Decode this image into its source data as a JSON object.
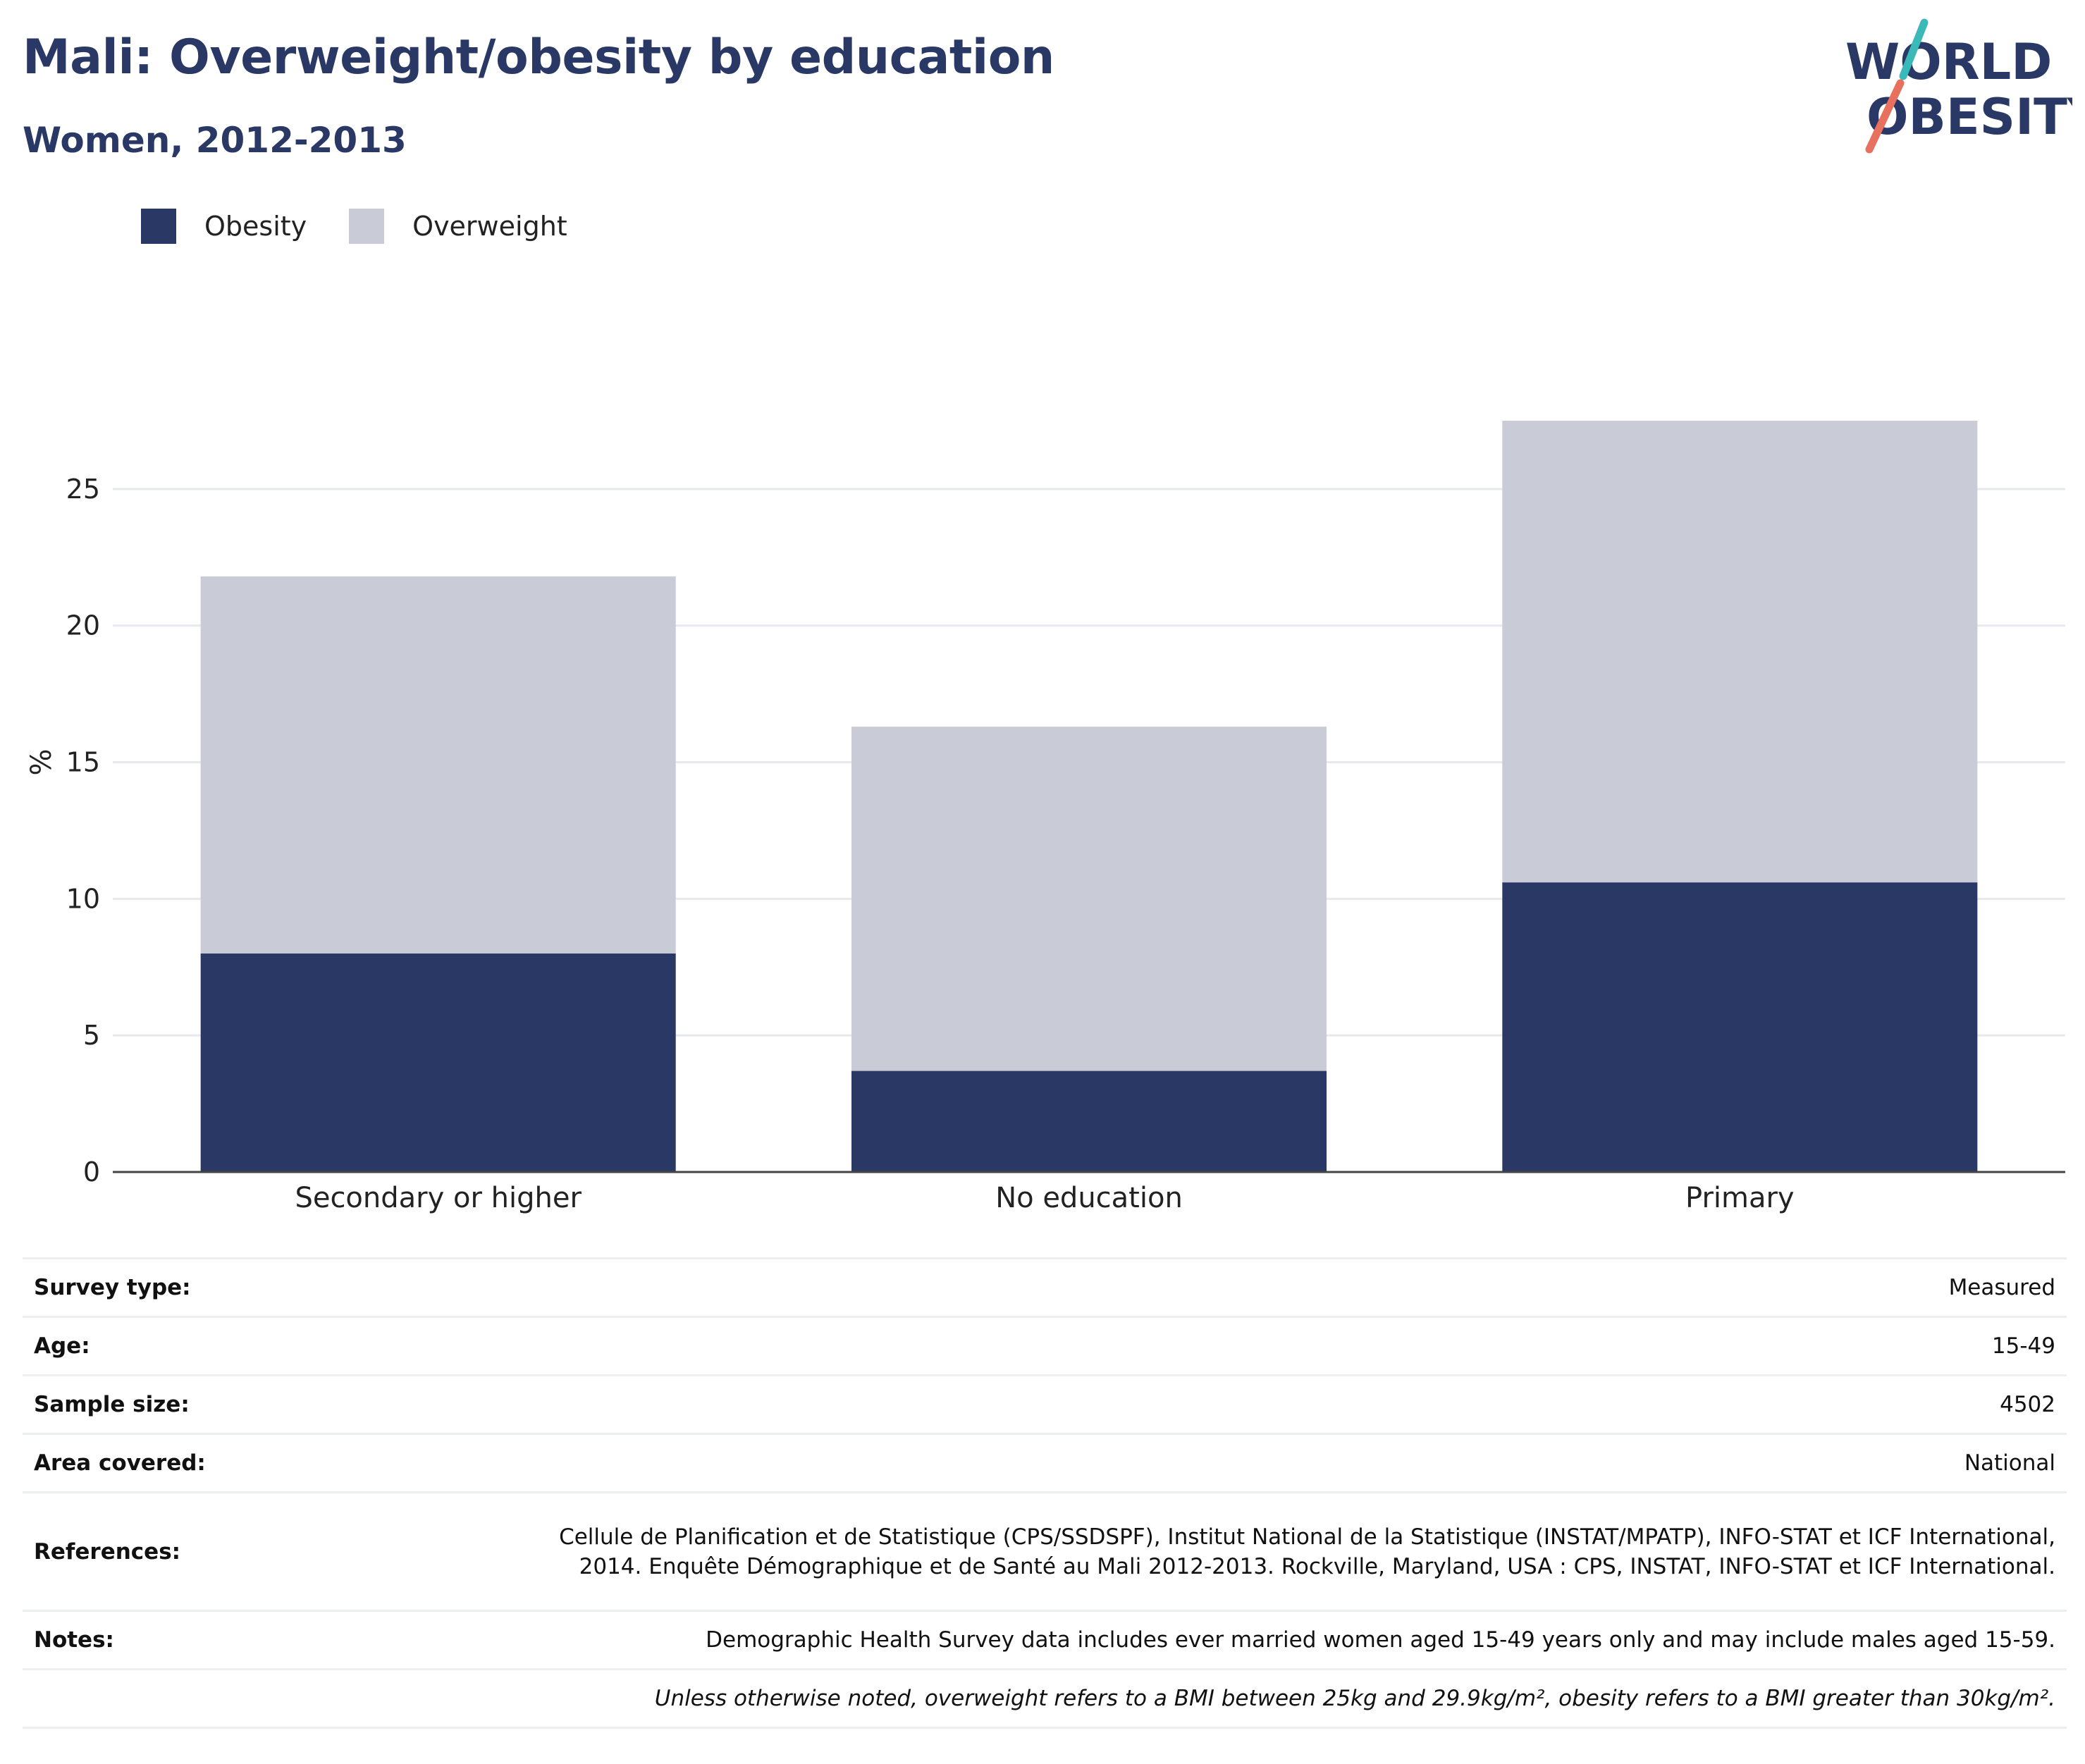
{
  "header": {
    "title": "Mali: Overweight/obesity by education",
    "subtitle": "Women, 2012-2013"
  },
  "logo": {
    "line1": "WORLD",
    "line2": "OBESITY",
    "colors": {
      "text": "#2a3866",
      "teal": "#3bb8b8",
      "coral": "#e8705e"
    }
  },
  "colors": {
    "obesity": "#2a3866",
    "overweight": "#c9cbd6",
    "grid": "#e8e9ee",
    "axis": "#444444",
    "heading": "#2a3866"
  },
  "legend": {
    "items": [
      {
        "label": "Obesity",
        "color": "#2a3866"
      },
      {
        "label": "Overweight",
        "color": "#c9cbd6"
      }
    ]
  },
  "chart_data": {
    "type": "bar",
    "stacked": true,
    "categories": [
      "Secondary or higher",
      "No education",
      "Primary"
    ],
    "series": [
      {
        "name": "Obesity",
        "values": [
          8.0,
          3.7,
          10.6
        ]
      },
      {
        "name": "Overweight",
        "values": [
          13.8,
          12.6,
          16.9
        ]
      }
    ],
    "ylabel": "%",
    "xlabel": "",
    "ylim": [
      0,
      30
    ],
    "yticks": [
      0,
      5,
      10,
      15,
      20,
      25
    ],
    "grid": true,
    "legend_position": "top-left"
  },
  "meta": {
    "rows": [
      {
        "key": "Survey type:",
        "value": "Measured"
      },
      {
        "key": "Age:",
        "value": "15-49"
      },
      {
        "key": "Sample size:",
        "value": "4502"
      },
      {
        "key": "Area covered:",
        "value": "National"
      },
      {
        "key": "References:",
        "value": "Cellule de Planification et de Statistique (CPS/SSDSPF), Institut National de la Statistique (INSTAT/MPATP), INFO-STAT et ICF International, 2014. Enquête Démographique et de Santé au Mali 2012-2013. Rockville, Maryland, USA : CPS, INSTAT, INFO-STAT et ICF International."
      },
      {
        "key": "Notes:",
        "value": "Demographic Health Survey data includes ever married women aged 15-49 years only and may include males aged 15-59."
      },
      {
        "key": "",
        "value": "Unless otherwise noted, overweight refers to a BMI between 25kg and 29.9kg/m², obesity refers to a BMI greater than 30kg/m²."
      }
    ]
  }
}
